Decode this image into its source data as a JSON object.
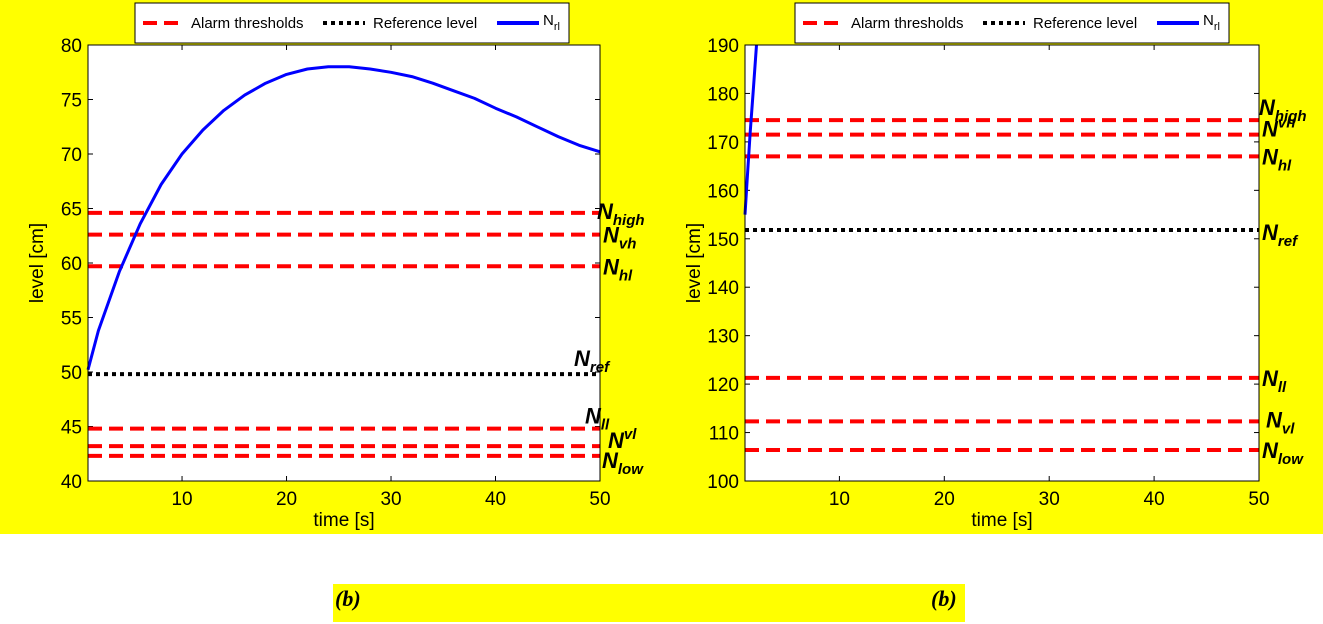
{
  "legend": {
    "alarm_label": "Alarm thresholds",
    "reference_label": "Reference level",
    "series_label": "N",
    "series_sub": "rl"
  },
  "captions": [
    "(b)",
    "(b)"
  ],
  "colors": {
    "background": "#ffff00",
    "alarm": "#ff0000",
    "reference": "#000000",
    "series": "#0000ff"
  },
  "chart_data": [
    {
      "type": "line",
      "xlabel": "time [s]",
      "ylabel": "level [cm]",
      "xlim": [
        1,
        50
      ],
      "ylim": [
        40,
        80
      ],
      "xticks": [
        10,
        20,
        30,
        40,
        50
      ],
      "yticks": [
        40,
        45,
        50,
        55,
        60,
        65,
        70,
        75,
        80
      ],
      "thresholds": [
        {
          "name": "high",
          "kind": "alarm",
          "value": 64.6
        },
        {
          "name": "vh",
          "kind": "alarm",
          "value": 62.6
        },
        {
          "name": "hl",
          "kind": "alarm",
          "value": 59.7
        },
        {
          "name": "ref",
          "kind": "reference",
          "value": 49.8
        },
        {
          "name": "ll",
          "kind": "alarm",
          "value": 44.8
        },
        {
          "name": "vl",
          "kind": "alarm",
          "value": 43.2
        },
        {
          "name": "low",
          "kind": "alarm",
          "value": 42.3
        }
      ],
      "series": [
        {
          "name": "N_rl",
          "x": [
            1,
            2,
            4,
            6,
            8,
            10,
            12,
            14,
            16,
            18,
            20,
            22,
            24,
            26,
            28,
            30,
            32,
            34,
            36,
            38,
            40,
            42,
            44,
            46,
            48,
            50
          ],
          "y": [
            50.2,
            53.8,
            59.2,
            63.6,
            67.2,
            70.0,
            72.2,
            74.0,
            75.4,
            76.5,
            77.3,
            77.8,
            78.0,
            78.0,
            77.8,
            77.5,
            77.1,
            76.5,
            75.8,
            75.1,
            74.2,
            73.4,
            72.5,
            71.6,
            70.8,
            70.2
          ]
        }
      ]
    },
    {
      "type": "line",
      "xlabel": "time [s]",
      "ylabel": "level [cm]",
      "xlim": [
        1,
        50
      ],
      "ylim": [
        100,
        190
      ],
      "xticks": [
        10,
        20,
        30,
        40,
        50
      ],
      "yticks": [
        100,
        110,
        120,
        130,
        140,
        150,
        160,
        170,
        180,
        190
      ],
      "thresholds": [
        {
          "name": "high",
          "kind": "alarm",
          "value": 174.5
        },
        {
          "name": "vh",
          "kind": "alarm",
          "value": 171.5
        },
        {
          "name": "hl",
          "kind": "alarm",
          "value": 167.0
        },
        {
          "name": "ref",
          "kind": "reference",
          "value": 151.8
        },
        {
          "name": "ll",
          "kind": "alarm",
          "value": 121.3
        },
        {
          "name": "vl",
          "kind": "alarm",
          "value": 112.3
        },
        {
          "name": "low",
          "kind": "alarm",
          "value": 106.4
        }
      ],
      "series": [
        {
          "name": "N_rl",
          "x": [
            1,
            1.2,
            1.5,
            1.8,
            2.1
          ],
          "y": [
            155.0,
            162.0,
            172.0,
            181.0,
            190.0
          ]
        }
      ]
    }
  ]
}
